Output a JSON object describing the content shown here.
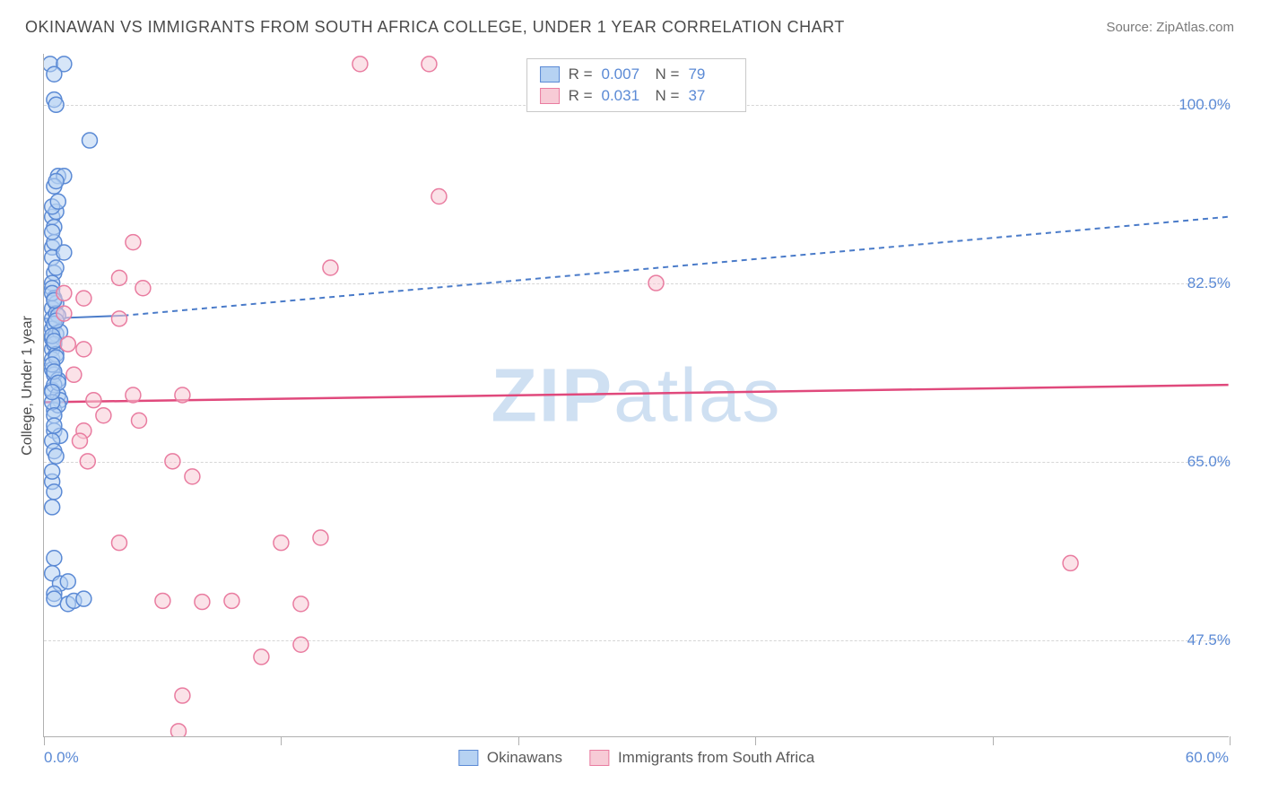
{
  "title": "OKINAWAN VS IMMIGRANTS FROM SOUTH AFRICA COLLEGE, UNDER 1 YEAR CORRELATION CHART",
  "source": "Source: ZipAtlas.com",
  "y_axis_title": "College, Under 1 year",
  "watermark": {
    "bold": "ZIP",
    "rest": "atlas"
  },
  "chart": {
    "type": "scatter",
    "xlim": [
      0,
      60
    ],
    "ylim": [
      38,
      105
    ],
    "xtick_positions": [
      0,
      12,
      24,
      36,
      48,
      60
    ],
    "xtick_labels": {
      "min": "0.0%",
      "max": "60.0%"
    },
    "ytick_positions": [
      47.5,
      65.0,
      82.5,
      100.0
    ],
    "ytick_labels": [
      "47.5%",
      "65.0%",
      "82.5%",
      "100.0%"
    ],
    "grid_color": "#d6d6d6",
    "axis_color": "#b0b0b0",
    "label_color": "#5b8ad5",
    "label_fontsize": 17,
    "background_color": "#ffffff",
    "marker_radius": 8.5,
    "marker_stroke_width": 1.5,
    "series": [
      {
        "name": "Okinawans",
        "r": 0.007,
        "n": 79,
        "fill": "#b6d2f2",
        "stroke": "#5b8ad5",
        "fill_opacity": 0.55,
        "trend": {
          "x0": 0,
          "y0": 79.0,
          "x1_solid": 4,
          "y1_solid": 79.3,
          "x1_dash": 60,
          "y1_dash": 89.0,
          "color": "#4a7bc9",
          "width": 2,
          "dash": "6,5"
        },
        "points": [
          [
            0.3,
            104.0
          ],
          [
            1.0,
            104.0
          ],
          [
            0.5,
            103.0
          ],
          [
            0.5,
            100.5
          ],
          [
            0.6,
            100.0
          ],
          [
            2.3,
            96.5
          ],
          [
            0.7,
            93.0
          ],
          [
            1.0,
            93.0
          ],
          [
            0.5,
            92.0
          ],
          [
            0.6,
            92.5
          ],
          [
            0.4,
            89.0
          ],
          [
            0.6,
            89.5
          ],
          [
            0.4,
            86.0
          ],
          [
            0.5,
            86.5
          ],
          [
            0.4,
            85.0
          ],
          [
            1.0,
            85.5
          ],
          [
            0.5,
            83.5
          ],
          [
            0.4,
            82.5
          ],
          [
            0.4,
            82.0
          ],
          [
            0.5,
            81.0
          ],
          [
            0.4,
            80.0
          ],
          [
            0.6,
            80.5
          ],
          [
            0.4,
            79.0
          ],
          [
            0.6,
            79.5
          ],
          [
            0.7,
            79.3
          ],
          [
            0.4,
            78.0
          ],
          [
            0.5,
            78.5
          ],
          [
            0.4,
            77.0
          ],
          [
            0.6,
            77.5
          ],
          [
            0.8,
            77.7
          ],
          [
            0.4,
            76.0
          ],
          [
            0.5,
            76.5
          ],
          [
            0.4,
            75.0
          ],
          [
            0.6,
            75.5
          ],
          [
            0.4,
            74.0
          ],
          [
            0.5,
            73.5
          ],
          [
            0.7,
            73.0
          ],
          [
            0.4,
            72.0
          ],
          [
            0.5,
            72.5
          ],
          [
            0.7,
            71.5
          ],
          [
            0.8,
            71.0
          ],
          [
            0.5,
            70.0
          ],
          [
            0.7,
            70.5
          ],
          [
            0.4,
            70.8
          ],
          [
            0.5,
            69.5
          ],
          [
            0.5,
            68.0
          ],
          [
            0.8,
            67.5
          ],
          [
            0.4,
            67.0
          ],
          [
            0.5,
            66.0
          ],
          [
            0.6,
            65.5
          ],
          [
            0.4,
            63.0
          ],
          [
            0.5,
            62.0
          ],
          [
            0.4,
            60.5
          ],
          [
            0.5,
            55.5
          ],
          [
            0.4,
            54.0
          ],
          [
            0.8,
            53.0
          ],
          [
            1.2,
            53.2
          ],
          [
            0.5,
            52.0
          ],
          [
            0.5,
            51.5
          ],
          [
            1.2,
            51.0
          ],
          [
            1.5,
            51.3
          ],
          [
            2.0,
            51.5
          ],
          [
            0.4,
            90.0
          ],
          [
            0.7,
            90.5
          ],
          [
            0.5,
            88.0
          ],
          [
            0.4,
            87.5
          ],
          [
            0.6,
            84.0
          ],
          [
            0.4,
            81.5
          ],
          [
            0.5,
            80.8
          ],
          [
            0.6,
            78.8
          ],
          [
            0.4,
            77.3
          ],
          [
            0.5,
            76.8
          ],
          [
            0.6,
            75.2
          ],
          [
            0.4,
            74.5
          ],
          [
            0.5,
            73.8
          ],
          [
            0.7,
            72.7
          ],
          [
            0.4,
            71.8
          ],
          [
            0.5,
            68.5
          ],
          [
            0.4,
            64.0
          ]
        ]
      },
      {
        "name": "Immigrants from South Africa",
        "r": 0.031,
        "n": 37,
        "fill": "#f7cbd6",
        "stroke": "#e97ca0",
        "fill_opacity": 0.55,
        "trend": {
          "x0": 0,
          "y0": 70.8,
          "x1_solid": 60,
          "y1_solid": 72.5,
          "color": "#e0497c",
          "width": 2.5
        },
        "points": [
          [
            16.0,
            104.0
          ],
          [
            19.5,
            104.0
          ],
          [
            20.0,
            91.0
          ],
          [
            4.5,
            86.5
          ],
          [
            14.5,
            84.0
          ],
          [
            3.8,
            83.0
          ],
          [
            2.0,
            81.0
          ],
          [
            5.0,
            82.0
          ],
          [
            3.8,
            79.0
          ],
          [
            31.0,
            82.5
          ],
          [
            2.0,
            76.0
          ],
          [
            4.5,
            71.5
          ],
          [
            7.0,
            71.5
          ],
          [
            4.8,
            69.0
          ],
          [
            2.0,
            68.0
          ],
          [
            2.2,
            65.0
          ],
          [
            6.5,
            65.0
          ],
          [
            7.5,
            63.5
          ],
          [
            3.8,
            57.0
          ],
          [
            12.0,
            57.0
          ],
          [
            14.0,
            57.5
          ],
          [
            6.0,
            51.3
          ],
          [
            8.0,
            51.2
          ],
          [
            9.5,
            51.3
          ],
          [
            13.0,
            51.0
          ],
          [
            13.0,
            47.0
          ],
          [
            11.0,
            45.8
          ],
          [
            7.0,
            42.0
          ],
          [
            6.8,
            38.5
          ],
          [
            52.0,
            55.0
          ],
          [
            1.0,
            81.5
          ],
          [
            1.5,
            73.5
          ],
          [
            1.2,
            76.5
          ],
          [
            2.5,
            71.0
          ],
          [
            3.0,
            69.5
          ],
          [
            1.8,
            67.0
          ],
          [
            1.0,
            79.5
          ]
        ]
      }
    ]
  },
  "legend_top": {
    "rows": [
      {
        "r_label": "R =",
        "r_val": "0.007",
        "n_label": "N =",
        "n_val": "79"
      },
      {
        "r_label": "R =",
        "r_val": "0.031",
        "n_label": "N =",
        "n_val": "37"
      }
    ]
  },
  "legend_bottom": {
    "items": [
      "Okinawans",
      "Immigrants from South Africa"
    ]
  }
}
